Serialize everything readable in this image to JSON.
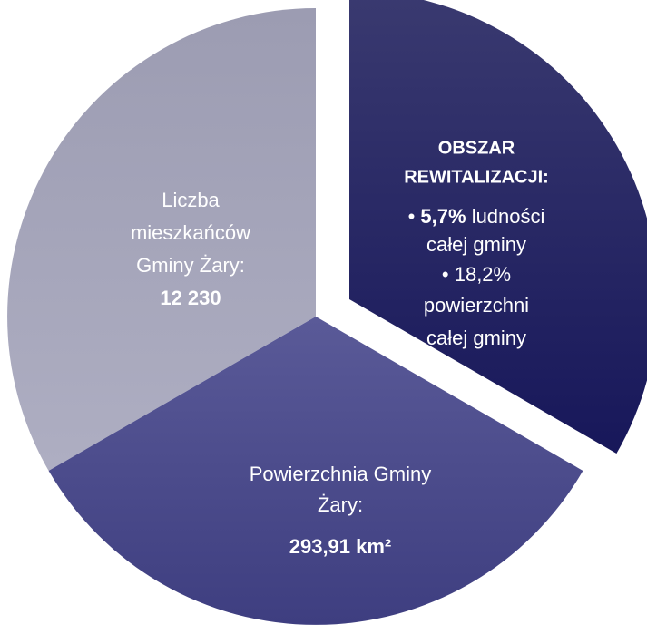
{
  "left": {
    "lines": [
      "Liczba",
      "mieszkańców",
      "Gminy Żary:"
    ],
    "value": "12 230"
  },
  "right": {
    "title": [
      "OBSZAR",
      "REWITALIZACJI:"
    ],
    "items": [
      {
        "bullet": "•",
        "bold": "5,7%",
        "text": "ludności",
        "cont": "całej gminy"
      },
      {
        "bullet": "•",
        "bold": "18,2%",
        "text": "",
        "cont": "powierzchni całej gminy"
      }
    ]
  },
  "bottom": {
    "lines": [
      "Powierzchnia Gminy",
      "Żary:"
    ],
    "value": "293,91 km²"
  }
}
